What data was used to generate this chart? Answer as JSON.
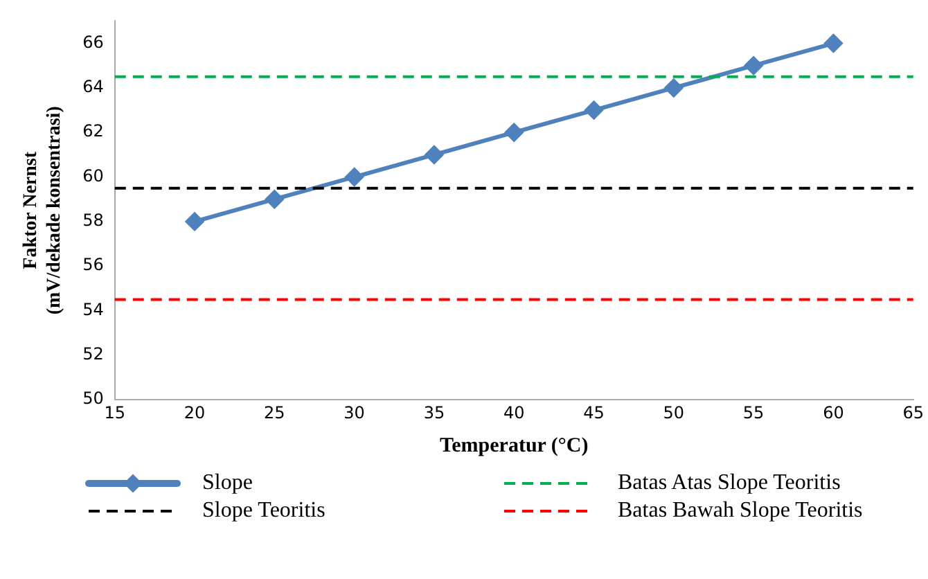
{
  "chart_data": {
    "type": "line",
    "xlabel": "Temperatur (°C)",
    "ylabel": "Faktor Nernst\n(mV/dekade konsentrasi)",
    "x": [
      20,
      25,
      30,
      35,
      40,
      45,
      50,
      55,
      60
    ],
    "series": [
      {
        "name": "Slope",
        "color": "#4f81bd",
        "values": [
          58,
          59,
          60,
          61,
          62,
          63,
          64,
          65,
          66
        ]
      }
    ],
    "marker": "diamond",
    "line_style": "solid",
    "ref_lines": [
      {
        "axis": "y",
        "value": 64.5,
        "label": "Batas Atas Slope Teoritis",
        "color": "#00b050",
        "line_style": "dashed"
      },
      {
        "axis": "y",
        "value": 59.5,
        "label": "Slope Teoritis",
        "color": "#000000",
        "line_style": "dashed"
      },
      {
        "axis": "y",
        "value": 54.5,
        "label": "Batas Bawah Slope Teoritis",
        "color": "#ff0000",
        "line_style": "dashed"
      }
    ],
    "xlim": [
      15,
      65
    ],
    "xticks": [
      15,
      20,
      25,
      30,
      35,
      40,
      45,
      50,
      55,
      60,
      65
    ],
    "ylim": [
      50,
      67
    ],
    "yticks": [
      50,
      52,
      54,
      56,
      58,
      60,
      62,
      64,
      66
    ],
    "grid": false,
    "legend": "bottom"
  }
}
